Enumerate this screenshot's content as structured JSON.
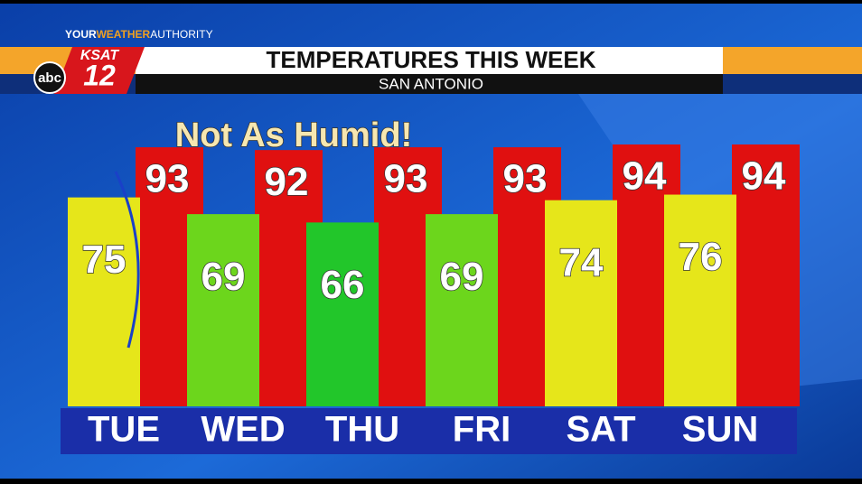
{
  "chart_data": {
    "type": "bar",
    "brand": [
      "YOUR",
      "WEATHER",
      "AUTHORITY"
    ],
    "logo": {
      "network": "abc",
      "station": "KSAT",
      "channel": "12"
    },
    "title": "TEMPERATURES THIS WEEK",
    "subtitle": "SAN ANTONIO",
    "annotation": "Not As Humid!",
    "categories": [
      "TUE",
      "WED",
      "THU",
      "FRI",
      "SAT",
      "SUN"
    ],
    "series": [
      {
        "colors": [
          "#e6e61a",
          "#6cd61c",
          "#22c62a",
          "#6cd61c",
          "#e6e61a",
          "#e6e61a"
        ],
        "values": [
          75,
          69,
          66,
          69,
          74,
          76
        ]
      },
      {
        "color": "#e01010",
        "values": [
          93,
          92,
          93,
          93,
          94,
          94
        ]
      }
    ]
  }
}
